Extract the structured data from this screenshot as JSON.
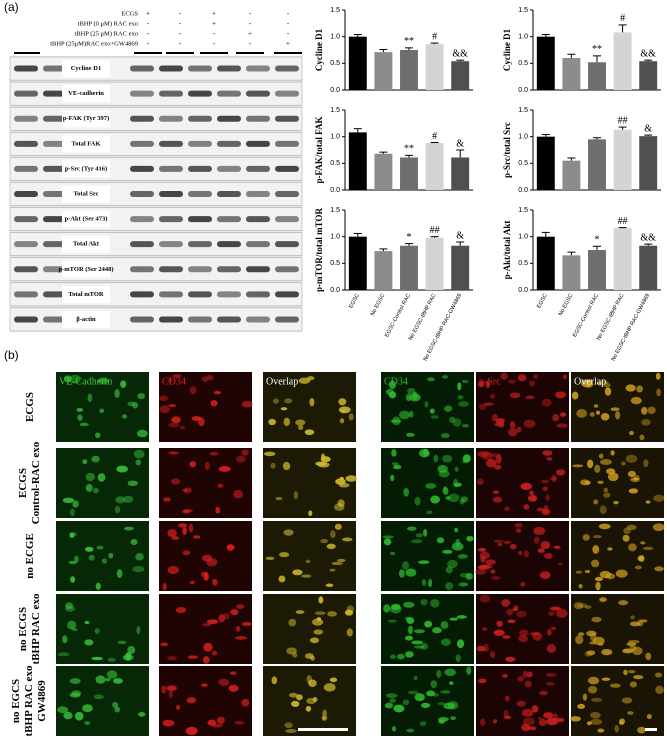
{
  "figure": {
    "panel_a": "(a)",
    "panel_b": "(b)"
  },
  "blot": {
    "treatments": [
      {
        "label": "ECGS",
        "signs": [
          "+",
          "-",
          "+",
          "-",
          "-"
        ]
      },
      {
        "label": "tBHP (0 μM) RAC exo",
        "signs": [
          "-",
          "-",
          "+",
          "-",
          "-"
        ]
      },
      {
        "label": "tBHP (25 μM) RAC exo",
        "signs": [
          "-",
          "-",
          "-",
          "+",
          "-"
        ]
      },
      {
        "label": "tBHP (25μM)RAC exo+GW4869",
        "signs": [
          "-",
          "-",
          "-",
          "-",
          "+"
        ]
      }
    ],
    "rows": [
      "Cycline D1",
      "VE-cadherin",
      "p-FAK (Tyr 397)",
      "Total FAK",
      "p-Src (Tyr 416)",
      "Total Src",
      "p-Akt (Ser 473)",
      "Total Akt",
      "p-mTOR (Ser 2448)",
      "Total mTOR",
      "β-actin"
    ]
  },
  "chart_data": [
    {
      "type": "bar",
      "ylabel": "Cycline D1",
      "categories": [
        null,
        null,
        null,
        null,
        null
      ],
      "values": [
        1.0,
        0.71,
        0.75,
        0.86,
        0.54
      ],
      "errors": [
        0.04,
        0.05,
        0.04,
        0.02,
        0.02
      ],
      "bar_labels": [
        null,
        null,
        "**",
        "#",
        "&&"
      ],
      "colors": [
        "#000000",
        "#8c8c8c",
        "#6e6e6e",
        "#d4d4d4",
        "#505050"
      ],
      "ylim": [
        0,
        1.5
      ],
      "yticks": [
        {
          "value": 0,
          "label": "0.0"
        },
        0.5,
        {
          "value": 1,
          "label": "1.0"
        },
        {
          "value": 1.5,
          "label": "1.5"
        }
      ]
    },
    {
      "type": "bar",
      "ylabel": "Cycline D1",
      "categories": [
        null,
        null,
        null,
        null,
        null
      ],
      "values": [
        1.0,
        0.6,
        0.52,
        1.08,
        0.54
      ],
      "errors": [
        0.04,
        0.07,
        0.12,
        0.14,
        0.02
      ],
      "bar_labels": [
        null,
        null,
        "**",
        "#",
        "&&"
      ],
      "colors": [
        "#000000",
        "#8c8c8c",
        "#6e6e6e",
        "#d4d4d4",
        "#505050"
      ],
      "ylim": [
        0,
        1.5
      ],
      "yticks": [
        {
          "value": 0,
          "label": "0.0"
        },
        0.5,
        {
          "value": 1,
          "label": "1.0"
        },
        {
          "value": 1.5,
          "label": "1.5"
        }
      ]
    },
    {
      "type": "bar",
      "ylabel": "p-FAK/total FAK",
      "categories": [
        null,
        null,
        null,
        null,
        null
      ],
      "values": [
        1.08,
        0.68,
        0.61,
        0.88,
        0.61
      ],
      "errors": [
        0.07,
        0.03,
        0.04,
        0.01,
        0.14
      ],
      "bar_labels": [
        null,
        null,
        "**",
        "#",
        "&"
      ],
      "colors": [
        "#000000",
        "#8c8c8c",
        "#6e6e6e",
        "#d4d4d4",
        "#505050"
      ],
      "ylim": [
        0,
        1.5
      ],
      "yticks": [
        {
          "value": 0,
          "label": "0.0"
        },
        0.5,
        {
          "value": 1,
          "label": "1.0"
        },
        {
          "value": 1.5,
          "label": "1.5"
        }
      ]
    },
    {
      "type": "bar",
      "ylabel": "p-Src/total Src",
      "categories": [
        null,
        null,
        null,
        null,
        null
      ],
      "values": [
        1.0,
        0.55,
        0.95,
        1.13,
        1.01
      ],
      "errors": [
        0.04,
        0.05,
        0.03,
        0.05,
        0.02
      ],
      "bar_labels": [
        null,
        null,
        null,
        "##",
        "&"
      ],
      "colors": [
        "#000000",
        "#8c8c8c",
        "#6e6e6e",
        "#d4d4d4",
        "#505050"
      ],
      "ylim": [
        0,
        1.5
      ],
      "yticks": [
        {
          "value": 0,
          "label": "0.0"
        },
        0.5,
        {
          "value": 1,
          "label": "1.0"
        },
        {
          "value": 1.5,
          "label": "1.5"
        }
      ]
    },
    {
      "type": "bar",
      "ylabel": "p-mTOR/total mTOR",
      "categories": [
        "EGSC",
        "No EGSC",
        "EGSC-Control RAC",
        "No EGSC-tBHP RAC",
        "No EGSC-tBHP RAC-GW4869"
      ],
      "values": [
        1.0,
        0.73,
        0.83,
        0.98,
        0.83
      ],
      "errors": [
        0.06,
        0.04,
        0.04,
        0.02,
        0.07
      ],
      "bar_labels": [
        null,
        null,
        "*",
        "##",
        "&"
      ],
      "colors": [
        "#000000",
        "#8c8c8c",
        "#6e6e6e",
        "#d4d4d4",
        "#505050"
      ],
      "ylim": [
        0,
        1.5
      ],
      "yticks": [
        {
          "value": 0,
          "label": "0.0"
        },
        0.5,
        {
          "value": 1,
          "label": "1.0"
        },
        {
          "value": 1.5,
          "label": "1.5"
        }
      ]
    },
    {
      "type": "bar",
      "ylabel": "p-Akt/total Akt",
      "categories": [
        "EGSC",
        "No EGSC",
        "EGSC-Control RAC",
        "No EGSC-tBHP RAC",
        "No EGSC-tBHP RAC-GW4869"
      ],
      "values": [
        1.0,
        0.65,
        0.75,
        1.16,
        0.83
      ],
      "errors": [
        0.08,
        0.06,
        0.07,
        0.01,
        0.03
      ],
      "bar_labels": [
        null,
        null,
        "*",
        "##",
        "&&"
      ],
      "colors": [
        "#000000",
        "#8c8c8c",
        "#6e6e6e",
        "#d4d4d4",
        "#505050"
      ],
      "ylim": [
        0,
        1.5
      ],
      "yticks": [
        {
          "value": 0,
          "label": "0.0"
        },
        0.5,
        {
          "value": 1,
          "label": "1.0"
        },
        {
          "value": 1.5,
          "label": "1.5"
        }
      ]
    }
  ],
  "micrographs": {
    "columns": [
      "VE-Cadherin",
      "CD34",
      "Overlap",
      "CD34",
      "p-Src",
      "Overlap"
    ],
    "rows": [
      {
        "lines": [
          "ECGS"
        ]
      },
      {
        "lines": [
          "ECGS",
          "Control-RAC exo"
        ]
      },
      {
        "lines": [
          "no ECGE"
        ]
      },
      {
        "lines": [
          "no ECGS",
          "tBHP RAC exo"
        ]
      },
      {
        "lines": [
          "no EGCS",
          "tBHP RAC exo",
          "GW4869"
        ]
      }
    ]
  }
}
